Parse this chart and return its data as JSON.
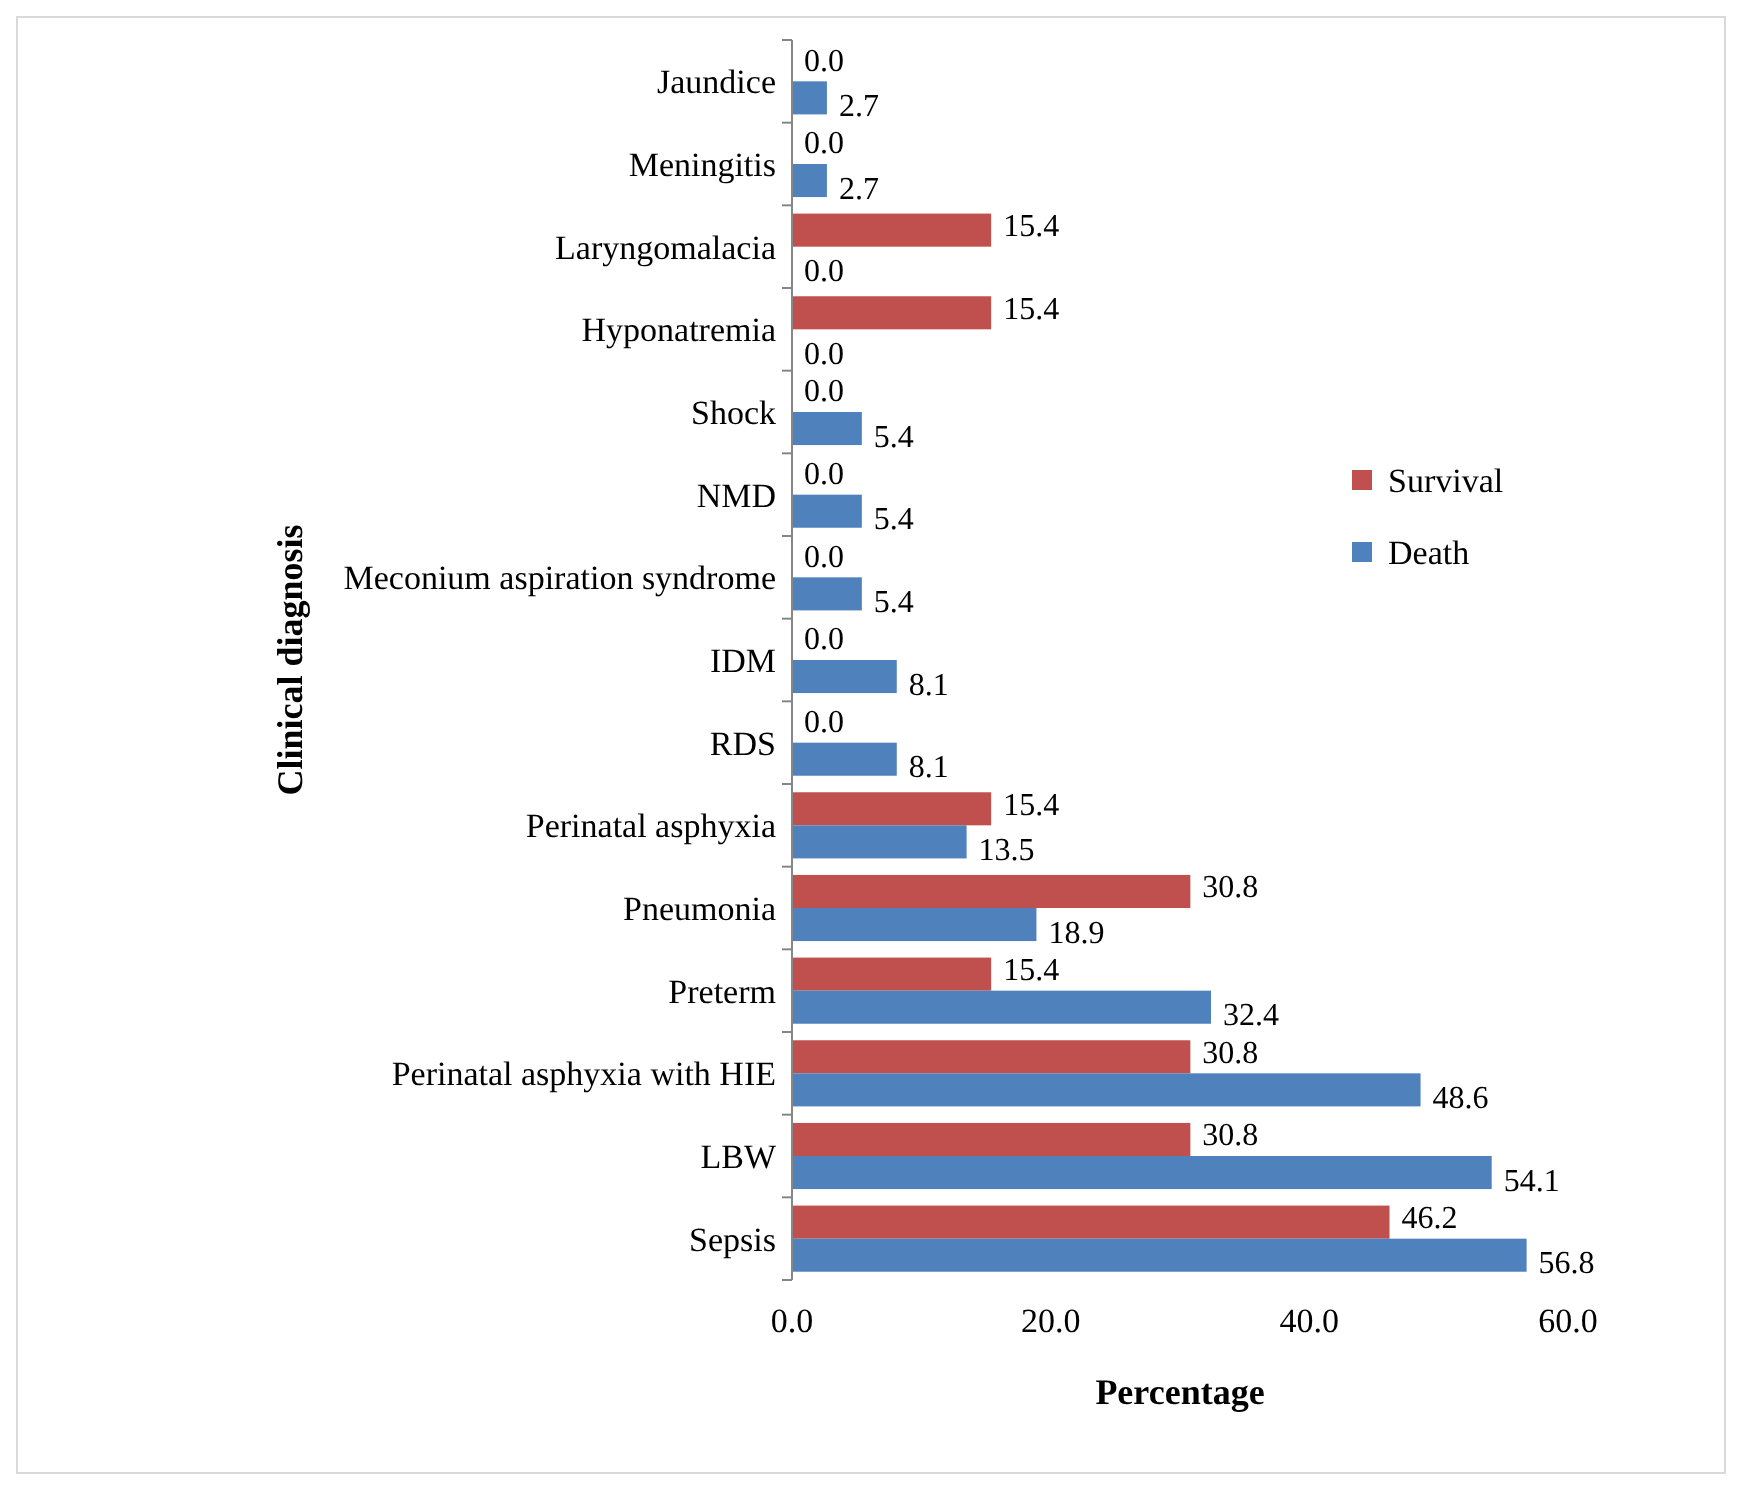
{
  "chart_data": {
    "type": "bar",
    "orientation": "horizontal",
    "xlabel": "Percentage",
    "ylabel": "Clinical diagnosis",
    "categories": [
      "Jaundice",
      "Meningitis",
      "Laryngomalacia",
      "Hyponatremia",
      "Shock",
      "NMD",
      "Meconium aspiration syndrome",
      "IDM",
      "RDS",
      "Perinatal asphyxia",
      "Pneumonia",
      "Preterm",
      "Perinatal asphyxia with HIE",
      "LBW",
      "Sepsis"
    ],
    "series": [
      {
        "name": "Survival",
        "color": "#c0504d",
        "values": [
          0,
          0,
          15.4,
          15.4,
          0,
          0,
          0,
          0,
          0,
          15.4,
          30.8,
          15.4,
          30.8,
          30.8,
          46.2
        ],
        "value_labels": [
          "0.0",
          "0.0",
          "15.4",
          "15.4",
          "0.0",
          "0.0",
          "0.0",
          "0.0",
          "0.0",
          "15.4",
          "30.8",
          "15.4",
          "30.8",
          "30.8",
          "46.2"
        ]
      },
      {
        "name": "Death",
        "color": "#4f81bd",
        "values": [
          2.7,
          2.7,
          0,
          0,
          5.4,
          5.4,
          5.4,
          8.1,
          8.1,
          13.5,
          18.9,
          32.4,
          48.6,
          54.1,
          56.8
        ],
        "value_labels": [
          "2.7",
          "2.7",
          "0.0",
          "0.0",
          "5.4",
          "5.4",
          "5.4",
          "8.1",
          "8.1",
          "13.5",
          "18.9",
          "32.4",
          "48.6",
          "54.1",
          "56.8"
        ]
      }
    ],
    "xlim": [
      0,
      60
    ],
    "xticks": [
      {
        "value": 0,
        "label": "0.0"
      },
      {
        "value": 20,
        "label": "20.0"
      },
      {
        "value": 40,
        "label": "40.0"
      },
      {
        "value": 60,
        "label": "60.0"
      }
    ],
    "grid": false,
    "legend": "right"
  }
}
